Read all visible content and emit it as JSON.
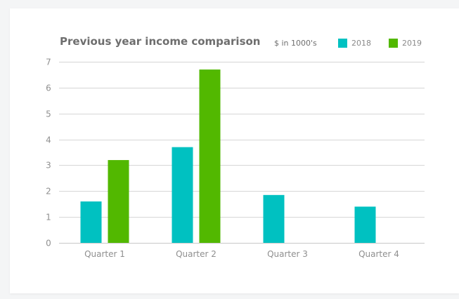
{
  "chart_data": {
    "type": "bar",
    "title": "Previous year income comparison",
    "unit_label": "$ in 1000's",
    "categories": [
      "Quarter 1",
      "Quarter 2",
      "Quarter 3",
      "Quarter 4"
    ],
    "series": [
      {
        "name": "2018",
        "color": "#00c1c1",
        "values": [
          1.6,
          3.7,
          1.85,
          1.4
        ]
      },
      {
        "name": "2019",
        "color": "#52b800",
        "values": [
          3.2,
          6.7,
          null,
          null
        ]
      }
    ],
    "ylim": [
      0,
      7
    ],
    "yticks": [
      0,
      1,
      2,
      3,
      4,
      5,
      6,
      7
    ],
    "grid": true,
    "legend_position": "top-right"
  }
}
